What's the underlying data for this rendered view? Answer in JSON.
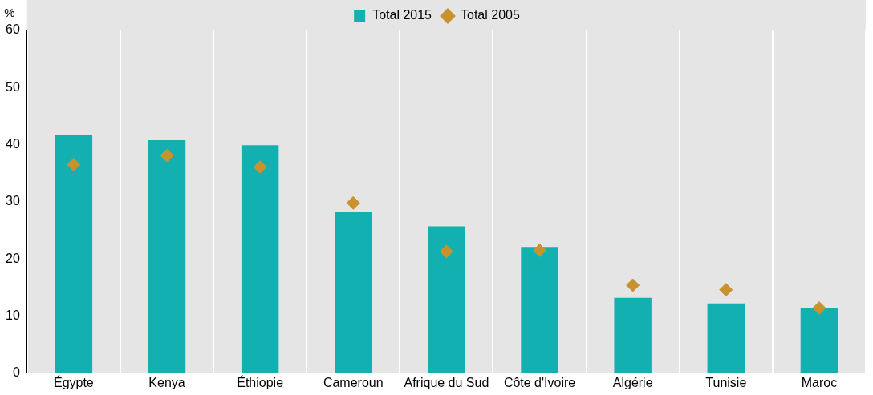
{
  "chart_data": {
    "type": "bar",
    "ylabel": "%",
    "categories": [
      "Égypte",
      "Kenya",
      "Éthiopie",
      "Cameroun",
      "Afrique du Sud",
      "Côte d'Ivoire",
      "Algérie",
      "Tunisie",
      "Maroc"
    ],
    "series": [
      {
        "name": "Total 2015",
        "color": "#12b0b0",
        "values": [
          41.7,
          40.8,
          39.9,
          28.3,
          25.7,
          22.1,
          13.2,
          12.2,
          11.4
        ]
      },
      {
        "name": "Total 2005",
        "type": "scatter",
        "color": "#c8922e",
        "x": [
          "Égypte",
          "Kenya",
          "Éthiopie",
          "Cameroun",
          "Afrique du Sud",
          "Côte d'Ivoire",
          "Algérie",
          "Tunisie",
          "Maroc"
        ],
        "values": [
          36.5,
          38.1,
          36.1,
          29.8,
          21.3,
          21.5,
          15.4,
          14.6,
          11.4
        ]
      }
    ],
    "ylim": [
      0,
      60
    ],
    "yticks": [
      0,
      10,
      20,
      30,
      40,
      50,
      60
    ],
    "grid": "x",
    "legend": "top",
    "marker": "diamond"
  }
}
